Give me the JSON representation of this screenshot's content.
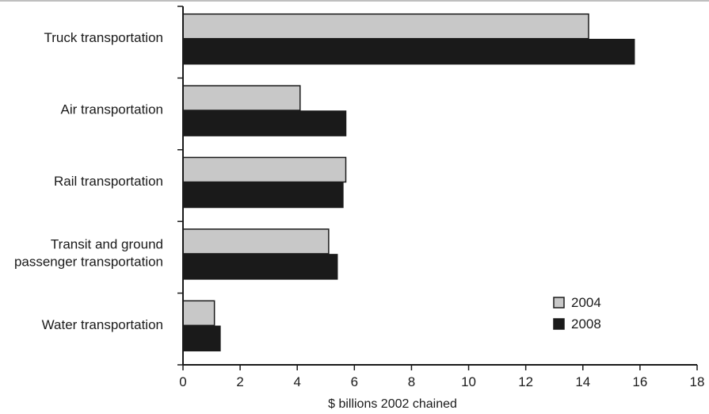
{
  "chart_data": {
    "type": "bar",
    "orientation": "horizontal",
    "categories": [
      [
        "Truck transportation"
      ],
      [
        "Air transportation"
      ],
      [
        "Rail transportation"
      ],
      [
        "Transit and ground",
        "passenger transportation"
      ],
      [
        "Water transportation"
      ]
    ],
    "series": [
      {
        "name": "2004",
        "values": [
          14.2,
          4.1,
          5.7,
          5.1,
          1.1
        ],
        "color": "#c8c8c8"
      },
      {
        "name": "2008",
        "values": [
          15.8,
          5.7,
          5.6,
          5.4,
          1.3
        ],
        "color": "#1a1a1a"
      }
    ],
    "xlabel": "$ billions 2002 chained",
    "xlim": [
      0,
      18
    ],
    "xticks": [
      0,
      2,
      4,
      6,
      8,
      10,
      12,
      14,
      16,
      18
    ],
    "grid": false,
    "legend": {
      "placement": "bottom-right",
      "entries": [
        "2004",
        "2008"
      ]
    }
  }
}
